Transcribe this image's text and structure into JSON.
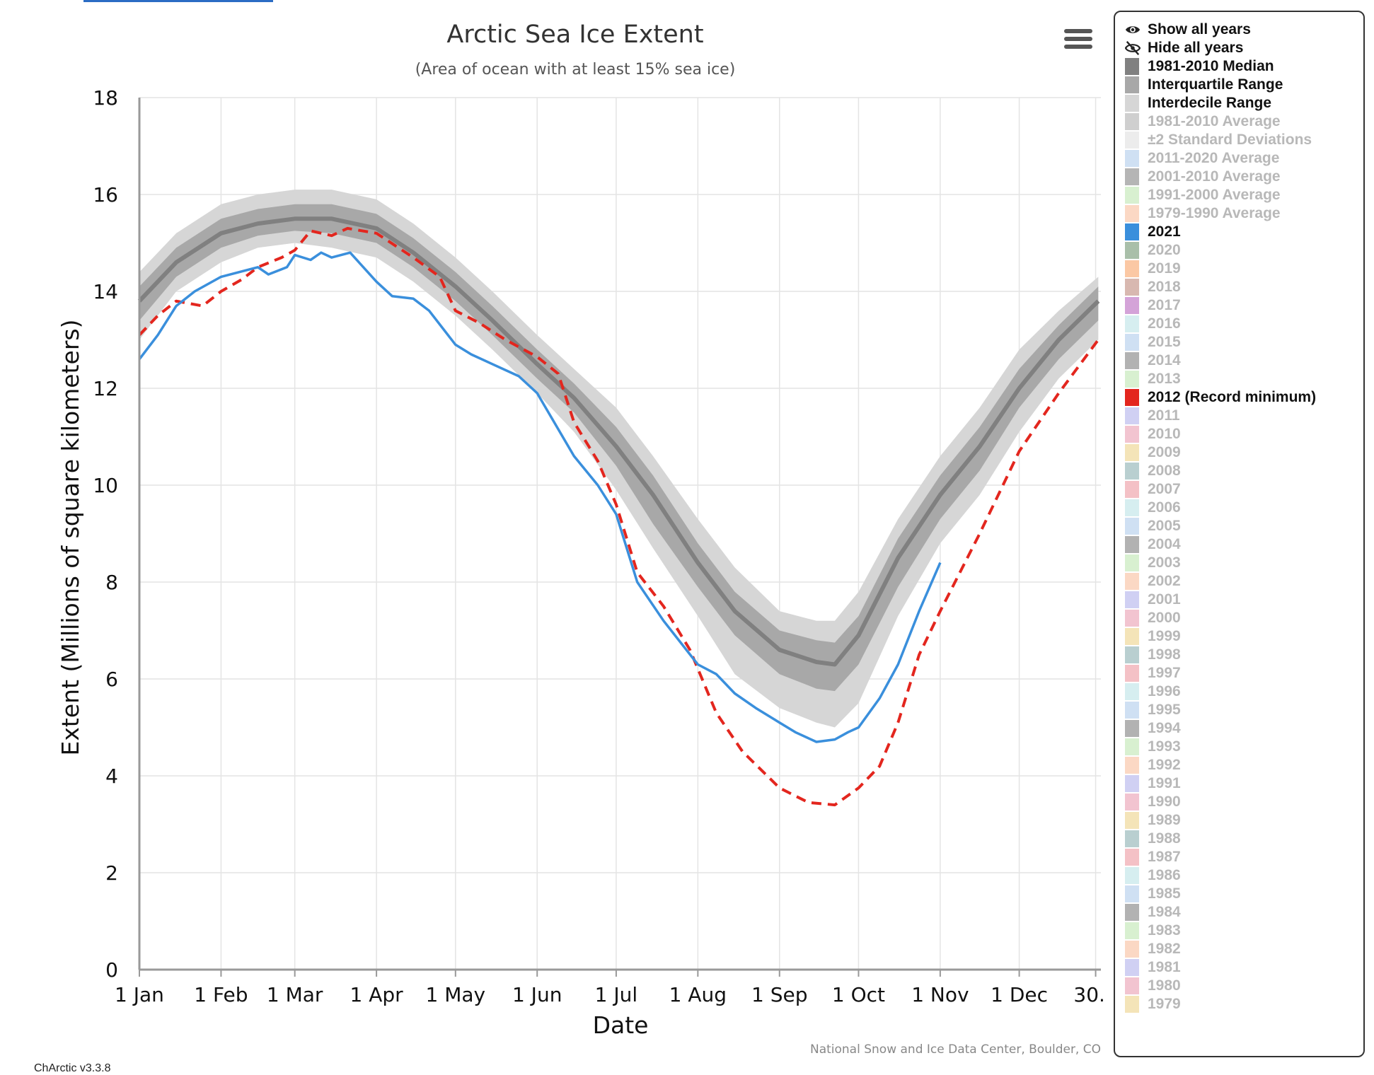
{
  "chart_data": {
    "type": "area",
    "title": "Arctic Sea Ice Extent",
    "subtitle": "(Area of ocean with at least 15% sea ice)",
    "xlabel": "Date",
    "ylabel": "Extent (Millions of square kilometers)",
    "ylim": [
      0,
      18
    ],
    "xlim": [
      1,
      366
    ],
    "yticks": [
      0,
      2,
      4,
      6,
      8,
      10,
      12,
      14,
      16,
      18
    ],
    "xticks": [
      {
        "day": 1,
        "label": "1 Jan"
      },
      {
        "day": 32,
        "label": "1 Feb"
      },
      {
        "day": 60,
        "label": "1 Mar"
      },
      {
        "day": 91,
        "label": "1 Apr"
      },
      {
        "day": 121,
        "label": "1 May"
      },
      {
        "day": 152,
        "label": "1 Jun"
      },
      {
        "day": 182,
        "label": "1 Jul"
      },
      {
        "day": 213,
        "label": "1 Aug"
      },
      {
        "day": 244,
        "label": "1 Sep"
      },
      {
        "day": 274,
        "label": "1 Oct"
      },
      {
        "day": 305,
        "label": "1 Nov"
      },
      {
        "day": 335,
        "label": "1 Dec"
      },
      {
        "day": 364,
        "label": "30..."
      }
    ],
    "grid": true,
    "legend_position": "right",
    "credit": "National Snow and Ice Data Center, Boulder, CO",
    "x": [
      1,
      15,
      32,
      46,
      60,
      74,
      91,
      105,
      121,
      135,
      152,
      166,
      182,
      196,
      213,
      227,
      244,
      258,
      265,
      274,
      289,
      305,
      320,
      335,
      350,
      365
    ],
    "series": [
      {
        "name": "1981-2010 Median",
        "style": "median",
        "color": "#808080",
        "values": [
          13.8,
          14.6,
          15.2,
          15.4,
          15.5,
          15.5,
          15.3,
          14.8,
          14.1,
          13.4,
          12.5,
          11.8,
          10.8,
          9.8,
          8.4,
          7.4,
          6.6,
          6.35,
          6.3,
          6.9,
          8.5,
          9.8,
          10.8,
          12.0,
          13.0,
          13.8
        ]
      },
      {
        "name": "Interquartile Range",
        "style": "band",
        "color": "#a8a8a8",
        "lower": [
          13.4,
          14.3,
          14.9,
          15.15,
          15.25,
          15.2,
          15.0,
          14.5,
          13.8,
          13.1,
          12.2,
          11.5,
          10.4,
          9.2,
          7.9,
          6.9,
          6.1,
          5.8,
          5.75,
          6.3,
          7.9,
          9.3,
          10.3,
          11.6,
          12.6,
          13.4
        ],
        "upper": [
          14.1,
          14.9,
          15.5,
          15.7,
          15.8,
          15.8,
          15.6,
          15.1,
          14.4,
          13.7,
          12.8,
          12.1,
          11.2,
          10.2,
          8.8,
          7.8,
          7.0,
          6.8,
          6.75,
          7.3,
          8.9,
          10.2,
          11.2,
          12.4,
          13.3,
          14.1
        ]
      },
      {
        "name": "Interdecile Range",
        "style": "band",
        "color": "#d6d6d6",
        "lower": [
          13.0,
          14.0,
          14.6,
          14.9,
          15.0,
          14.9,
          14.7,
          14.2,
          13.5,
          12.8,
          11.9,
          11.1,
          9.9,
          8.7,
          7.3,
          6.1,
          5.4,
          5.1,
          5.0,
          5.5,
          7.3,
          8.8,
          9.8,
          11.1,
          12.2,
          13.0
        ],
        "upper": [
          14.4,
          15.2,
          15.8,
          16.0,
          16.1,
          16.1,
          15.9,
          15.4,
          14.7,
          14.0,
          13.1,
          12.4,
          11.6,
          10.6,
          9.3,
          8.3,
          7.4,
          7.2,
          7.2,
          7.8,
          9.3,
          10.6,
          11.6,
          12.8,
          13.6,
          14.3
        ]
      },
      {
        "name": "2021",
        "style": "line",
        "color": "#3a8fdc",
        "x": [
          1,
          8,
          15,
          22,
          32,
          46,
          50,
          57,
          60,
          66,
          70,
          74,
          81,
          91,
          97,
          105,
          111,
          121,
          127,
          135,
          145,
          152,
          166,
          175,
          182,
          190,
          200,
          213,
          220,
          227,
          235,
          244,
          250,
          258,
          265,
          270,
          274,
          282,
          289,
          297,
          305
        ],
        "values": [
          12.6,
          13.1,
          13.7,
          14.0,
          14.3,
          14.5,
          14.35,
          14.5,
          14.75,
          14.65,
          14.8,
          14.7,
          14.8,
          14.2,
          13.9,
          13.85,
          13.6,
          12.9,
          12.7,
          12.5,
          12.25,
          11.9,
          10.6,
          10.0,
          9.4,
          8.0,
          7.2,
          6.3,
          6.1,
          5.7,
          5.4,
          5.1,
          4.9,
          4.7,
          4.75,
          4.9,
          5.0,
          5.6,
          6.3,
          7.4,
          8.4
        ]
      },
      {
        "name": "2012 (Record minimum)",
        "style": "dashed",
        "color": "#e3261e",
        "x": [
          1,
          8,
          15,
          25,
          32,
          40,
          46,
          55,
          60,
          66,
          74,
          80,
          91,
          105,
          115,
          121,
          130,
          140,
          152,
          160,
          166,
          175,
          182,
          190,
          200,
          210,
          220,
          230,
          244,
          255,
          265,
          274,
          282,
          289,
          297,
          305,
          320,
          335,
          350,
          365
        ],
        "values": [
          13.1,
          13.5,
          13.8,
          13.7,
          14.0,
          14.25,
          14.5,
          14.7,
          14.85,
          15.25,
          15.15,
          15.3,
          15.2,
          14.7,
          14.3,
          13.6,
          13.35,
          13.0,
          12.65,
          12.3,
          11.3,
          10.5,
          9.6,
          8.2,
          7.5,
          6.6,
          5.3,
          4.5,
          3.75,
          3.45,
          3.4,
          3.75,
          4.2,
          5.1,
          6.5,
          7.4,
          9.0,
          10.7,
          11.9,
          13.0
        ]
      }
    ]
  },
  "menu": {
    "icon": "hamburger-icon"
  },
  "legend": {
    "controls": [
      {
        "label": "Show all years",
        "icon": "eye-icon"
      },
      {
        "label": "Hide all years",
        "icon": "eye-slash-icon"
      }
    ],
    "items": [
      {
        "label": "1981-2010 Median",
        "color": "#808080",
        "active": true
      },
      {
        "label": "Interquartile Range",
        "color": "#a8a8a8",
        "active": true
      },
      {
        "label": "Interdecile Range",
        "color": "#d6d6d6",
        "active": true
      },
      {
        "label": "1981-2010 Average",
        "color": "#cfcfcf",
        "active": false
      },
      {
        "label": "±2 Standard Deviations",
        "color": "#ececec",
        "active": false
      },
      {
        "label": "2011-2020 Average",
        "color": "#cfe0f3",
        "active": false
      },
      {
        "label": "2001-2010 Average",
        "color": "#b5b5b5",
        "active": false
      },
      {
        "label": "1991-2000 Average",
        "color": "#d8f0d0",
        "active": false
      },
      {
        "label": "1979-1990 Average",
        "color": "#fbd8c4",
        "active": false
      },
      {
        "label": "2021",
        "color": "#3a8fdc",
        "active": true
      },
      {
        "label": "2020",
        "color": "#a9bfa9",
        "active": false
      },
      {
        "label": "2019",
        "color": "#fbc8a4",
        "active": false
      },
      {
        "label": "2018",
        "color": "#d8b8b0",
        "active": false
      },
      {
        "label": "2017",
        "color": "#d4a3d8",
        "active": false
      },
      {
        "label": "2016",
        "color": "#d6eef0",
        "active": false
      },
      {
        "label": "2015",
        "color": "#cfe0f3",
        "active": false
      },
      {
        "label": "2014",
        "color": "#b2b2b2",
        "active": false
      },
      {
        "label": "2013",
        "color": "#d8f0d0",
        "active": false
      },
      {
        "label": "2012 (Record minimum)",
        "color": "#e3261e",
        "active": true
      },
      {
        "label": "2011",
        "color": "#d0d0f3",
        "active": false
      },
      {
        "label": "2010",
        "color": "#f2c4d0",
        "active": false
      },
      {
        "label": "2009",
        "color": "#f4e4b8",
        "active": false
      },
      {
        "label": "2008",
        "color": "#b9cfd0",
        "active": false
      },
      {
        "label": "2007",
        "color": "#f4c1c6",
        "active": false
      },
      {
        "label": "2006",
        "color": "#d6eef0",
        "active": false
      },
      {
        "label": "2005",
        "color": "#cfe0f3",
        "active": false
      },
      {
        "label": "2004",
        "color": "#b2b2b2",
        "active": false
      },
      {
        "label": "2003",
        "color": "#d8f0d0",
        "active": false
      },
      {
        "label": "2002",
        "color": "#fbd8c4",
        "active": false
      },
      {
        "label": "2001",
        "color": "#d0d0f3",
        "active": false
      },
      {
        "label": "2000",
        "color": "#f2c4d0",
        "active": false
      },
      {
        "label": "1999",
        "color": "#f4e4b8",
        "active": false
      },
      {
        "label": "1998",
        "color": "#b9cfd0",
        "active": false
      },
      {
        "label": "1997",
        "color": "#f4c1c6",
        "active": false
      },
      {
        "label": "1996",
        "color": "#d6eef0",
        "active": false
      },
      {
        "label": "1995",
        "color": "#cfe0f3",
        "active": false
      },
      {
        "label": "1994",
        "color": "#b2b2b2",
        "active": false
      },
      {
        "label": "1993",
        "color": "#d8f0d0",
        "active": false
      },
      {
        "label": "1992",
        "color": "#fbd8c4",
        "active": false
      },
      {
        "label": "1991",
        "color": "#d0d0f3",
        "active": false
      },
      {
        "label": "1990",
        "color": "#f2c4d0",
        "active": false
      },
      {
        "label": "1989",
        "color": "#f4e4b8",
        "active": false
      },
      {
        "label": "1988",
        "color": "#b9cfd0",
        "active": false
      },
      {
        "label": "1987",
        "color": "#f4c1c6",
        "active": false
      },
      {
        "label": "1986",
        "color": "#d6eef0",
        "active": false
      },
      {
        "label": "1985",
        "color": "#cfe0f3",
        "active": false
      },
      {
        "label": "1984",
        "color": "#b2b2b2",
        "active": false
      },
      {
        "label": "1983",
        "color": "#d8f0d0",
        "active": false
      },
      {
        "label": "1982",
        "color": "#fbd8c4",
        "active": false
      },
      {
        "label": "1981",
        "color": "#d0d0f3",
        "active": false
      },
      {
        "label": "1980",
        "color": "#f2c4d0",
        "active": false
      },
      {
        "label": "1979",
        "color": "#f4e4b8",
        "active": false
      }
    ]
  },
  "footer": {
    "version": "ChArctic v3.3.8"
  }
}
